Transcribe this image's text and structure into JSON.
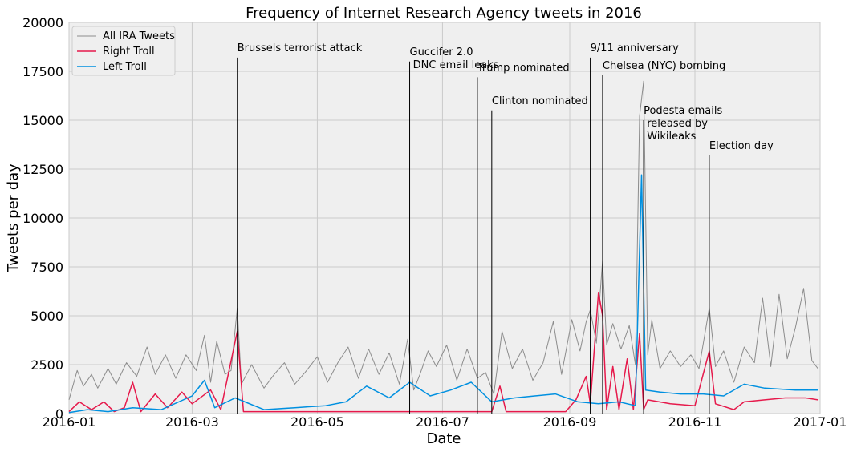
{
  "chart_data": {
    "type": "line",
    "title": "Frequency of Internet Research Agency tweets in 2016",
    "xlabel": "Date",
    "ylabel": "Tweets per day",
    "xlim": [
      "2016-01-01",
      "2017-01-01"
    ],
    "ylim": [
      0,
      20000
    ],
    "x_ticks": [
      "2016-01",
      "2016-03",
      "2016-05",
      "2016-07",
      "2016-09",
      "2016-11",
      "2017-01"
    ],
    "y_ticks": [
      "0",
      "2500",
      "5000",
      "7500",
      "10000",
      "12500",
      "15000",
      "17500",
      "20000"
    ],
    "grid": true,
    "legend_position": "top-left",
    "series": [
      {
        "name": "All IRA Tweets",
        "color": "#8c8c8c",
        "points": [
          [
            "2016-01-01",
            700
          ],
          [
            "2016-01-05",
            2200
          ],
          [
            "2016-01-08",
            1400
          ],
          [
            "2016-01-12",
            2000
          ],
          [
            "2016-01-15",
            1300
          ],
          [
            "2016-01-20",
            2300
          ],
          [
            "2016-01-24",
            1500
          ],
          [
            "2016-01-29",
            2600
          ],
          [
            "2016-02-03",
            1900
          ],
          [
            "2016-02-08",
            3400
          ],
          [
            "2016-02-12",
            2000
          ],
          [
            "2016-02-17",
            3000
          ],
          [
            "2016-02-22",
            1800
          ],
          [
            "2016-02-27",
            3000
          ],
          [
            "2016-03-03",
            2200
          ],
          [
            "2016-03-07",
            4000
          ],
          [
            "2016-03-10",
            1600
          ],
          [
            "2016-03-13",
            3700
          ],
          [
            "2016-03-17",
            2000
          ],
          [
            "2016-03-20",
            2200
          ],
          [
            "2016-03-23",
            5400
          ],
          [
            "2016-03-25",
            1500
          ],
          [
            "2016-03-30",
            2500
          ],
          [
            "2016-04-05",
            1300
          ],
          [
            "2016-04-10",
            2000
          ],
          [
            "2016-04-15",
            2600
          ],
          [
            "2016-04-20",
            1500
          ],
          [
            "2016-04-25",
            2100
          ],
          [
            "2016-05-01",
            2900
          ],
          [
            "2016-05-06",
            1600
          ],
          [
            "2016-05-11",
            2600
          ],
          [
            "2016-05-16",
            3400
          ],
          [
            "2016-05-21",
            1800
          ],
          [
            "2016-05-26",
            3300
          ],
          [
            "2016-05-31",
            2000
          ],
          [
            "2016-06-05",
            3100
          ],
          [
            "2016-06-10",
            1500
          ],
          [
            "2016-06-14",
            3800
          ],
          [
            "2016-06-17",
            1200
          ],
          [
            "2016-06-20",
            2000
          ],
          [
            "2016-06-24",
            3200
          ],
          [
            "2016-06-28",
            2400
          ],
          [
            "2016-07-03",
            3500
          ],
          [
            "2016-07-08",
            1700
          ],
          [
            "2016-07-13",
            3300
          ],
          [
            "2016-07-18",
            1800
          ],
          [
            "2016-07-22",
            2100
          ],
          [
            "2016-07-26",
            1000
          ],
          [
            "2016-07-30",
            4200
          ],
          [
            "2016-08-04",
            2300
          ],
          [
            "2016-08-09",
            3300
          ],
          [
            "2016-08-14",
            1700
          ],
          [
            "2016-08-19",
            2600
          ],
          [
            "2016-08-24",
            4700
          ],
          [
            "2016-08-28",
            2000
          ],
          [
            "2016-09-02",
            4800
          ],
          [
            "2016-09-06",
            3200
          ],
          [
            "2016-09-09",
            4700
          ],
          [
            "2016-09-11",
            5300
          ],
          [
            "2016-09-14",
            3600
          ],
          [
            "2016-09-17",
            7800
          ],
          [
            "2016-09-19",
            3500
          ],
          [
            "2016-09-22",
            4600
          ],
          [
            "2016-09-26",
            3300
          ],
          [
            "2016-09-30",
            4500
          ],
          [
            "2016-10-03",
            2500
          ],
          [
            "2016-10-05",
            15200
          ],
          [
            "2016-10-07",
            17000
          ],
          [
            "2016-10-09",
            3000
          ],
          [
            "2016-10-11",
            4800
          ],
          [
            "2016-10-15",
            2300
          ],
          [
            "2016-10-20",
            3200
          ],
          [
            "2016-10-25",
            2400
          ],
          [
            "2016-10-30",
            3000
          ],
          [
            "2016-11-03",
            2300
          ],
          [
            "2016-11-08",
            5400
          ],
          [
            "2016-11-11",
            2400
          ],
          [
            "2016-11-15",
            3200
          ],
          [
            "2016-11-20",
            1600
          ],
          [
            "2016-11-25",
            3400
          ],
          [
            "2016-11-30",
            2600
          ],
          [
            "2016-12-04",
            5900
          ],
          [
            "2016-12-08",
            2400
          ],
          [
            "2016-12-12",
            6100
          ],
          [
            "2016-12-16",
            2800
          ],
          [
            "2016-12-20",
            4400
          ],
          [
            "2016-12-24",
            6400
          ],
          [
            "2016-12-28",
            2700
          ],
          [
            "2016-12-31",
            2300
          ]
        ]
      },
      {
        "name": "Right Troll",
        "color": "#e6194b",
        "points": [
          [
            "2016-01-01",
            100
          ],
          [
            "2016-01-06",
            600
          ],
          [
            "2016-01-12",
            200
          ],
          [
            "2016-01-18",
            600
          ],
          [
            "2016-01-23",
            100
          ],
          [
            "2016-01-28",
            300
          ],
          [
            "2016-02-01",
            1600
          ],
          [
            "2016-02-05",
            100
          ],
          [
            "2016-02-12",
            1000
          ],
          [
            "2016-02-18",
            300
          ],
          [
            "2016-02-25",
            1100
          ],
          [
            "2016-03-01",
            500
          ],
          [
            "2016-03-10",
            1200
          ],
          [
            "2016-03-15",
            200
          ],
          [
            "2016-03-23",
            4200
          ],
          [
            "2016-03-26",
            100
          ],
          [
            "2016-04-05",
            100
          ],
          [
            "2016-04-20",
            100
          ],
          [
            "2016-05-10",
            100
          ],
          [
            "2016-06-10",
            100
          ],
          [
            "2016-07-01",
            100
          ],
          [
            "2016-07-25",
            100
          ],
          [
            "2016-07-29",
            1400
          ],
          [
            "2016-08-01",
            100
          ],
          [
            "2016-08-30",
            100
          ],
          [
            "2016-09-04",
            700
          ],
          [
            "2016-09-09",
            1900
          ],
          [
            "2016-09-11",
            500
          ],
          [
            "2016-09-15",
            6200
          ],
          [
            "2016-09-17",
            5000
          ],
          [
            "2016-09-19",
            200
          ],
          [
            "2016-09-22",
            2400
          ],
          [
            "2016-09-25",
            200
          ],
          [
            "2016-09-29",
            2800
          ],
          [
            "2016-10-02",
            200
          ],
          [
            "2016-10-05",
            4100
          ],
          [
            "2016-10-07",
            200
          ],
          [
            "2016-10-09",
            700
          ],
          [
            "2016-10-20",
            500
          ],
          [
            "2016-11-01",
            400
          ],
          [
            "2016-11-08",
            3200
          ],
          [
            "2016-11-11",
            500
          ],
          [
            "2016-11-20",
            200
          ],
          [
            "2016-11-25",
            600
          ],
          [
            "2016-12-05",
            700
          ],
          [
            "2016-12-15",
            800
          ],
          [
            "2016-12-25",
            800
          ],
          [
            "2016-12-31",
            700
          ]
        ]
      },
      {
        "name": "Left Troll",
        "color": "#0090e0",
        "points": [
          [
            "2016-01-01",
            50
          ],
          [
            "2016-01-10",
            200
          ],
          [
            "2016-01-20",
            100
          ],
          [
            "2016-02-01",
            300
          ],
          [
            "2016-02-15",
            200
          ],
          [
            "2016-03-01",
            900
          ],
          [
            "2016-03-07",
            1700
          ],
          [
            "2016-03-12",
            300
          ],
          [
            "2016-03-22",
            800
          ],
          [
            "2016-04-05",
            200
          ],
          [
            "2016-04-20",
            300
          ],
          [
            "2016-05-05",
            400
          ],
          [
            "2016-05-15",
            600
          ],
          [
            "2016-05-25",
            1400
          ],
          [
            "2016-06-05",
            800
          ],
          [
            "2016-06-15",
            1600
          ],
          [
            "2016-06-25",
            900
          ],
          [
            "2016-07-05",
            1200
          ],
          [
            "2016-07-15",
            1600
          ],
          [
            "2016-07-25",
            600
          ],
          [
            "2016-08-05",
            800
          ],
          [
            "2016-08-15",
            900
          ],
          [
            "2016-08-25",
            1000
          ],
          [
            "2016-09-05",
            600
          ],
          [
            "2016-09-15",
            500
          ],
          [
            "2016-09-25",
            600
          ],
          [
            "2016-10-03",
            400
          ],
          [
            "2016-10-06",
            12200
          ],
          [
            "2016-10-08",
            1200
          ],
          [
            "2016-10-15",
            1100
          ],
          [
            "2016-10-25",
            1000
          ],
          [
            "2016-11-05",
            1000
          ],
          [
            "2016-11-15",
            900
          ],
          [
            "2016-11-25",
            1500
          ],
          [
            "2016-12-05",
            1300
          ],
          [
            "2016-12-20",
            1200
          ],
          [
            "2016-12-31",
            1200
          ]
        ]
      }
    ],
    "annotations": [
      {
        "date": "2016-03-23",
        "top": 18200,
        "lines": [
          "Brussels terrorist attack"
        ]
      },
      {
        "date": "2016-06-15",
        "top": 18000,
        "lines": [
          "Guccifer 2.0",
          " DNC email leaks"
        ]
      },
      {
        "date": "2016-07-18",
        "top": 17200,
        "lines": [
          "Trump nominated"
        ]
      },
      {
        "date": "2016-07-25",
        "top": 15500,
        "lines": [
          "Clinton nominated"
        ]
      },
      {
        "date": "2016-09-11",
        "top": 18200,
        "lines": [
          "9/11 anniversary"
        ]
      },
      {
        "date": "2016-09-17",
        "top": 17300,
        "lines": [
          "Chelsea (NYC) bombing"
        ]
      },
      {
        "date": "2016-10-07",
        "top": 15000,
        "lines": [
          "Podesta emails",
          " released by",
          " Wikileaks"
        ]
      },
      {
        "date": "2016-11-08",
        "top": 13200,
        "lines": [
          "Election day"
        ]
      }
    ]
  }
}
